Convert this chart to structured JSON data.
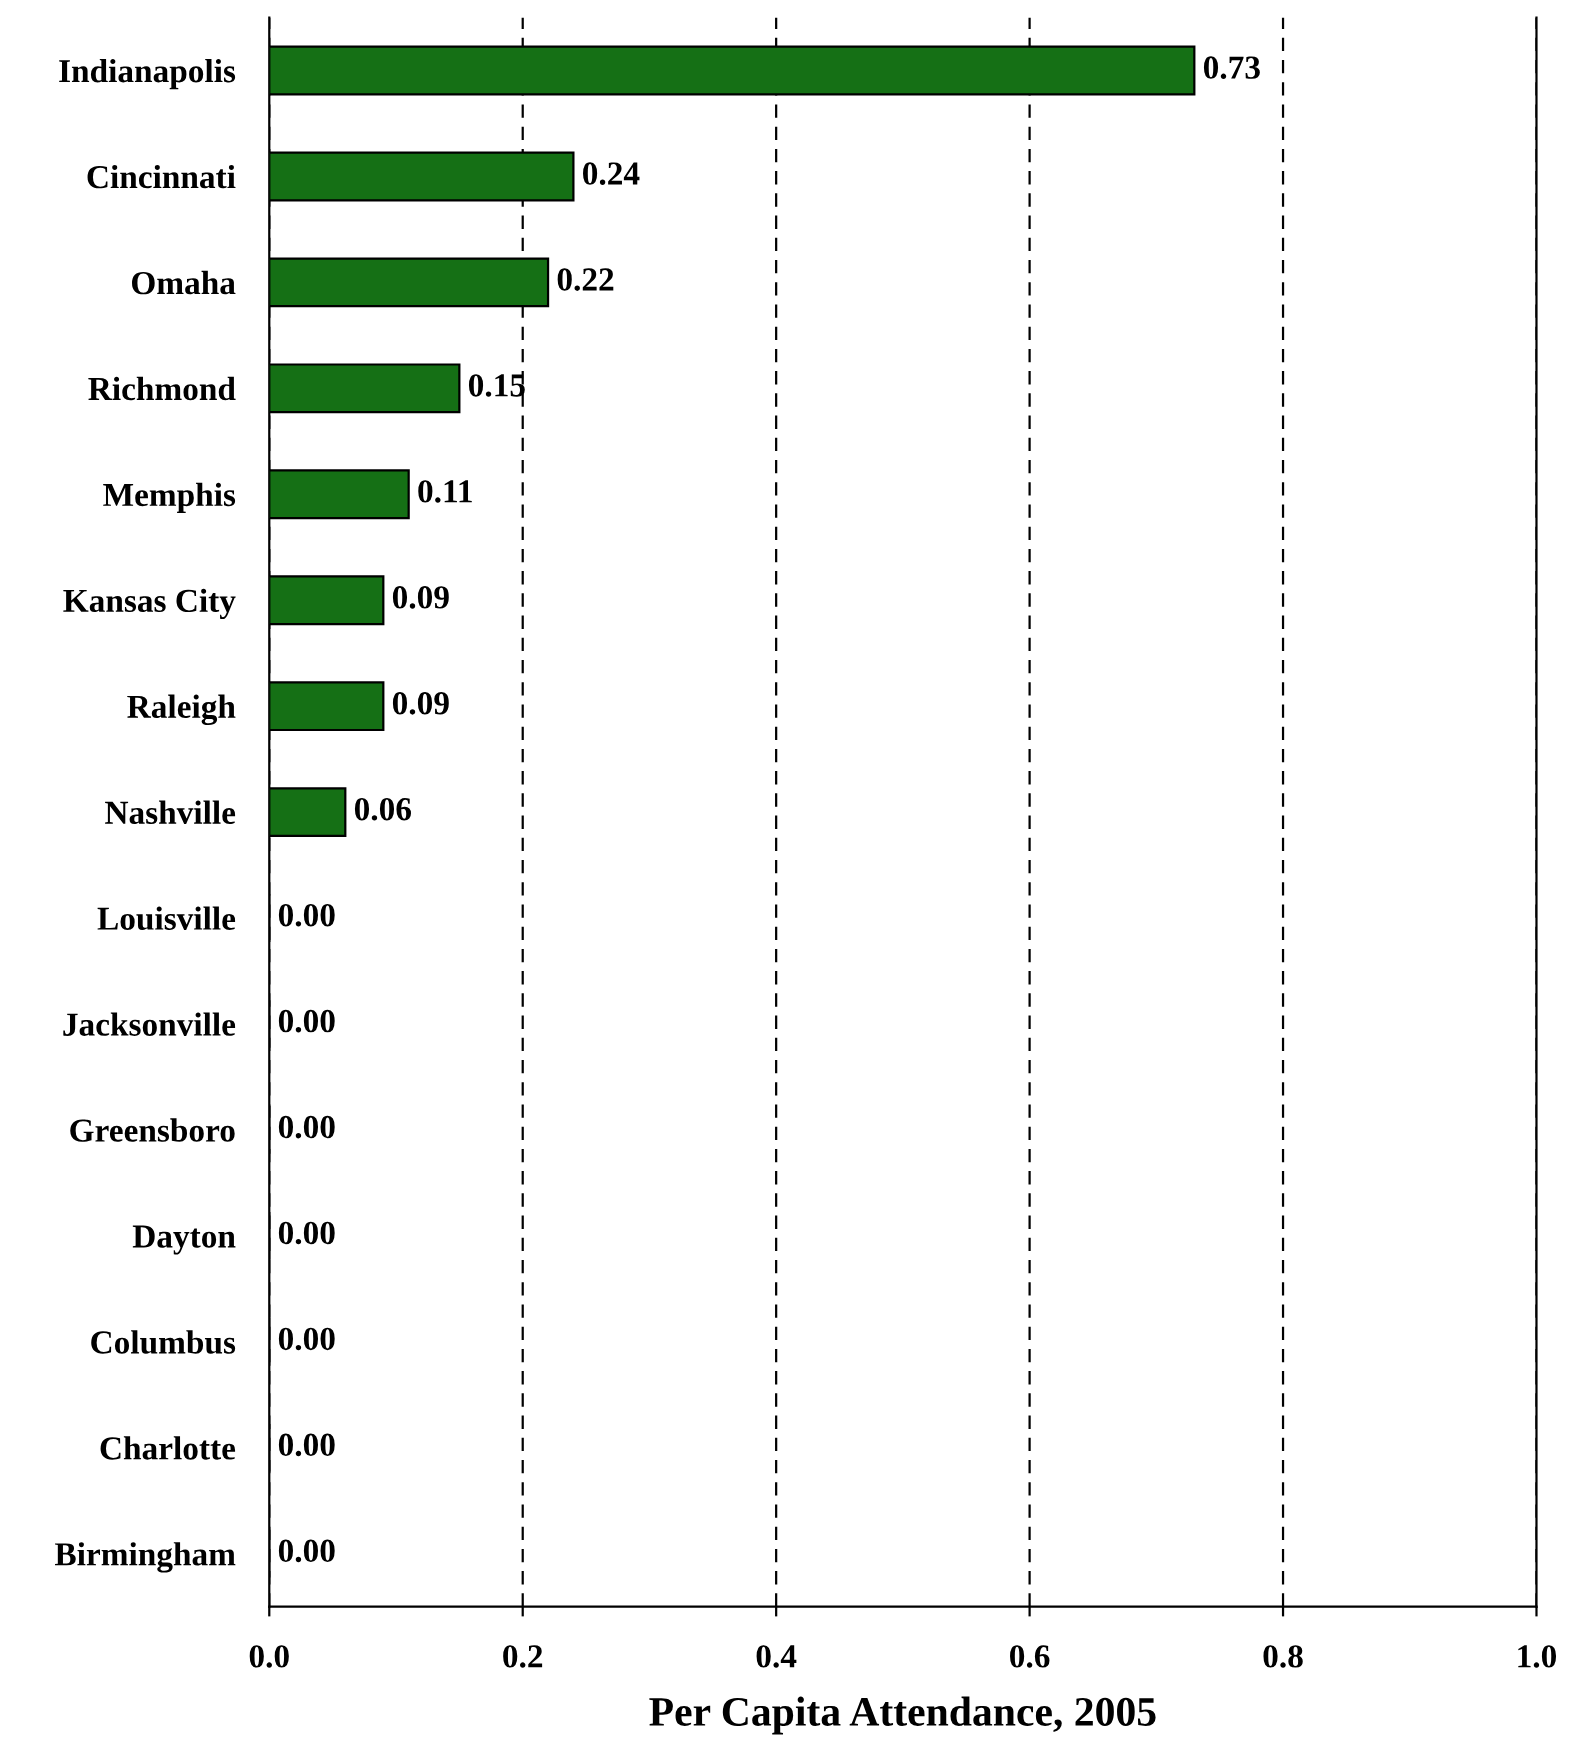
{
  "chart_data": {
    "type": "bar",
    "orientation": "horizontal",
    "xlabel": "Per Capita Attendance, 2005",
    "categories": [
      "Indianapolis",
      "Cincinnati",
      "Omaha",
      "Richmond",
      "Memphis",
      "Kansas City",
      "Raleigh",
      "Nashville",
      "Louisville",
      "Jacksonville",
      "Greensboro",
      "Dayton",
      "Columbus",
      "Charlotte",
      "Birmingham"
    ],
    "values": [
      0.73,
      0.24,
      0.22,
      0.15,
      0.11,
      0.09,
      0.09,
      0.06,
      0,
      0,
      0,
      0,
      0,
      0,
      0
    ],
    "value_labels": [
      "0.73",
      "0.24",
      "0.22",
      "0.15",
      "0.11",
      "0.09",
      "0.09",
      "0.06",
      "0.00",
      "0.00",
      "0.00",
      "0.00",
      "0.00",
      "0.00",
      "0.00"
    ],
    "color": "#157015",
    "xlim": [
      0,
      1
    ],
    "xticks": [
      {
        "value": 0,
        "label": "0.0"
      },
      0.2,
      0.4,
      0.6,
      0.8,
      {
        "value": 1,
        "label": "1.0"
      }
    ],
    "grid": "x",
    "legend": false
  }
}
